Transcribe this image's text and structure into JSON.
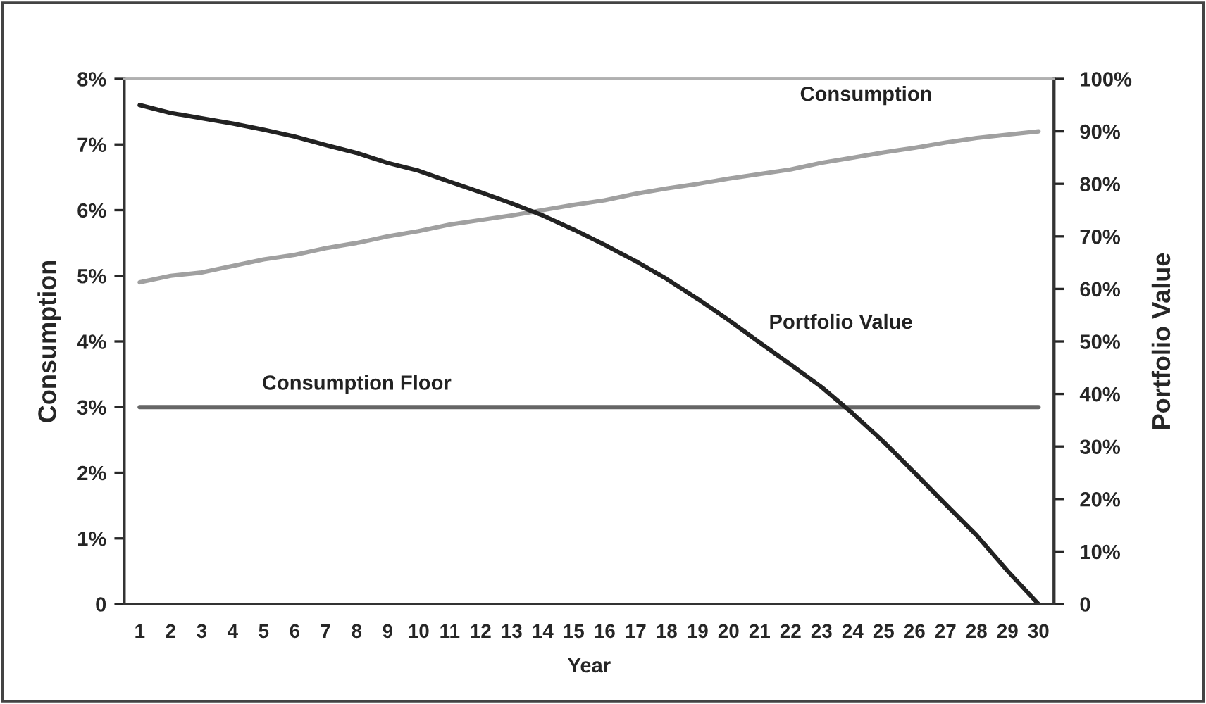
{
  "chart_data": {
    "type": "line",
    "xlabel": "Year",
    "ylabel": "Consumption",
    "y2label": "Portfolio Value",
    "categories": [
      "1",
      "2",
      "3",
      "4",
      "5",
      "6",
      "7",
      "8",
      "9",
      "10",
      "11",
      "12",
      "13",
      "14",
      "15",
      "16",
      "17",
      "18",
      "19",
      "20",
      "21",
      "22",
      "23",
      "24",
      "25",
      "26",
      "27",
      "28",
      "29",
      "30"
    ],
    "series": [
      {
        "name": "Consumption",
        "color": "#a0a0a0",
        "values": [
          4.9,
          5.0,
          5.05,
          5.15,
          5.25,
          5.32,
          5.42,
          5.5,
          5.6,
          5.68,
          5.78,
          5.85,
          5.92,
          6.0,
          6.08,
          6.15,
          6.25,
          6.33,
          6.4,
          6.48,
          6.55,
          6.62,
          6.72,
          6.8,
          6.88,
          6.95,
          7.03,
          7.1,
          7.15,
          7.2
        ]
      },
      {
        "name": "Portfolio Value",
        "color": "#222222",
        "axis": "y2",
        "values": [
          95,
          93.5,
          92.5,
          91.5,
          90.3,
          89,
          87.4,
          85.9,
          84,
          82.5,
          80.4,
          78.4,
          76.3,
          74,
          71.3,
          68.4,
          65.3,
          61.9,
          58.1,
          54.1,
          49.8,
          45.6,
          41.3,
          36.3,
          30.9,
          25,
          19,
          13.1,
          6.3,
          0
        ]
      },
      {
        "name": "Consumption Floor",
        "color": "#666666",
        "values": [
          3,
          3,
          3,
          3,
          3,
          3,
          3,
          3,
          3,
          3,
          3,
          3,
          3,
          3,
          3,
          3,
          3,
          3,
          3,
          3,
          3,
          3,
          3,
          3,
          3,
          3,
          3,
          3,
          3,
          3
        ]
      }
    ],
    "ylim": [
      0,
      8
    ],
    "yticks": [
      {
        "value": 0,
        "label": "0"
      },
      {
        "value": 1,
        "label": "1%"
      },
      {
        "value": 2,
        "label": "2%"
      },
      {
        "value": 3,
        "label": "3%"
      },
      {
        "value": 4,
        "label": "4%"
      },
      {
        "value": 5,
        "label": "5%"
      },
      {
        "value": 6,
        "label": "6%"
      },
      {
        "value": 7,
        "label": "7%"
      },
      {
        "value": 8,
        "label": "8%"
      }
    ],
    "y2lim": [
      0,
      100
    ],
    "y2ticks": [
      {
        "value": 0,
        "label": "0"
      },
      {
        "value": 10,
        "label": "10%"
      },
      {
        "value": 20,
        "label": "20%"
      },
      {
        "value": 30,
        "label": "30%"
      },
      {
        "value": 40,
        "label": "40%"
      },
      {
        "value": 50,
        "label": "50%"
      },
      {
        "value": 60,
        "label": "60%"
      },
      {
        "value": 70,
        "label": "70%"
      },
      {
        "value": 80,
        "label": "80%"
      },
      {
        "value": 90,
        "label": "90%"
      },
      {
        "value": 100,
        "label": "100%"
      }
    ],
    "grid": false,
    "legend": false
  }
}
